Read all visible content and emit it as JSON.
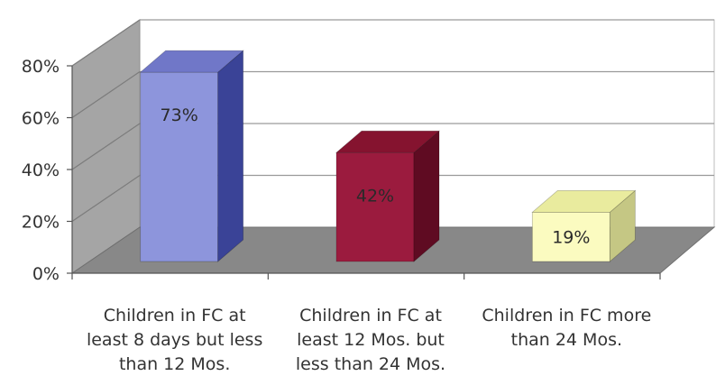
{
  "chart_data": {
    "type": "bar",
    "title": "",
    "xlabel": "",
    "ylabel": "",
    "ylim": [
      0,
      80
    ],
    "yticks": [
      "0%",
      "20%",
      "40%",
      "60%",
      "80%"
    ],
    "ytick_values": [
      0,
      20,
      40,
      60,
      80
    ],
    "grid": true,
    "style": "3d",
    "categories": [
      [
        "Children in FC at",
        "least 8 days but less",
        "than 12 Mos."
      ],
      [
        "Children in FC at",
        "least 12 Mos. but",
        "less than 24 Mos."
      ],
      [
        "Children in FC more",
        "than 24 Mos."
      ]
    ],
    "values": [
      73,
      42,
      19
    ],
    "data_labels": [
      "73%",
      "42%",
      "19%"
    ],
    "colors": {
      "bars": [
        "#8d95dc",
        "#9b1b3e",
        "#fbfbc0"
      ],
      "bar_tops": [
        "#7077c8",
        "#85132f",
        "#e9eb9e"
      ],
      "bar_sides": [
        "#3a4397",
        "#5f0b22",
        "#c5c784"
      ],
      "floor": "#888888",
      "back_wall": "#ffffff",
      "side_wall": "#a5a5a5",
      "gridline": "#9a9a9a"
    }
  }
}
